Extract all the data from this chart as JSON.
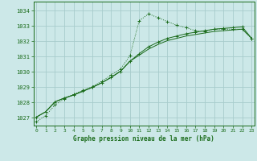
{
  "title": "Graphe pression niveau de la mer (hPa)",
  "bg_color": "#cce8e8",
  "grid_color": "#a8cccc",
  "line_color": "#1a6b1a",
  "xlim": [
    -0.3,
    23.3
  ],
  "ylim": [
    1026.5,
    1034.6
  ],
  "yticks": [
    1027,
    1028,
    1029,
    1030,
    1031,
    1032,
    1033,
    1034
  ],
  "xticks": [
    0,
    1,
    2,
    3,
    4,
    5,
    6,
    7,
    8,
    9,
    10,
    11,
    12,
    13,
    14,
    15,
    16,
    17,
    18,
    19,
    20,
    21,
    22,
    23
  ],
  "series1_x": [
    0,
    1,
    2,
    3,
    4,
    5,
    6,
    7,
    8,
    9,
    10,
    11,
    12,
    13,
    14,
    15,
    16,
    17,
    18,
    19,
    20,
    21,
    22,
    23
  ],
  "series1_y": [
    1026.75,
    1027.15,
    1027.85,
    1028.25,
    1028.55,
    1028.8,
    1029.05,
    1029.4,
    1029.8,
    1030.2,
    1031.05,
    1033.35,
    1033.8,
    1033.55,
    1033.3,
    1033.05,
    1032.9,
    1032.7,
    1032.65,
    1032.8,
    1032.8,
    1032.8,
    1032.8,
    1032.2
  ],
  "series2_x": [
    0,
    1,
    2,
    3,
    4,
    5,
    6,
    7,
    8,
    9,
    10,
    11,
    12,
    13,
    14,
    15,
    16,
    17,
    18,
    19,
    20,
    21,
    22,
    23
  ],
  "series2_y": [
    1027.05,
    1027.4,
    1028.05,
    1028.3,
    1028.5,
    1028.75,
    1029.0,
    1029.3,
    1029.65,
    1030.05,
    1030.7,
    1031.2,
    1031.65,
    1031.95,
    1032.2,
    1032.35,
    1032.5,
    1032.6,
    1032.7,
    1032.8,
    1032.85,
    1032.9,
    1032.95,
    1032.2
  ],
  "series3_x": [
    0,
    1,
    2,
    3,
    4,
    5,
    6,
    7,
    8,
    9,
    10,
    11,
    12,
    13,
    14,
    15,
    16,
    17,
    18,
    19,
    20,
    21,
    22,
    23
  ],
  "series3_y": [
    1027.05,
    1027.4,
    1028.05,
    1028.3,
    1028.5,
    1028.75,
    1029.0,
    1029.3,
    1029.65,
    1030.05,
    1030.7,
    1031.1,
    1031.5,
    1031.8,
    1032.05,
    1032.2,
    1032.35,
    1032.45,
    1032.55,
    1032.65,
    1032.7,
    1032.75,
    1032.8,
    1032.2
  ]
}
